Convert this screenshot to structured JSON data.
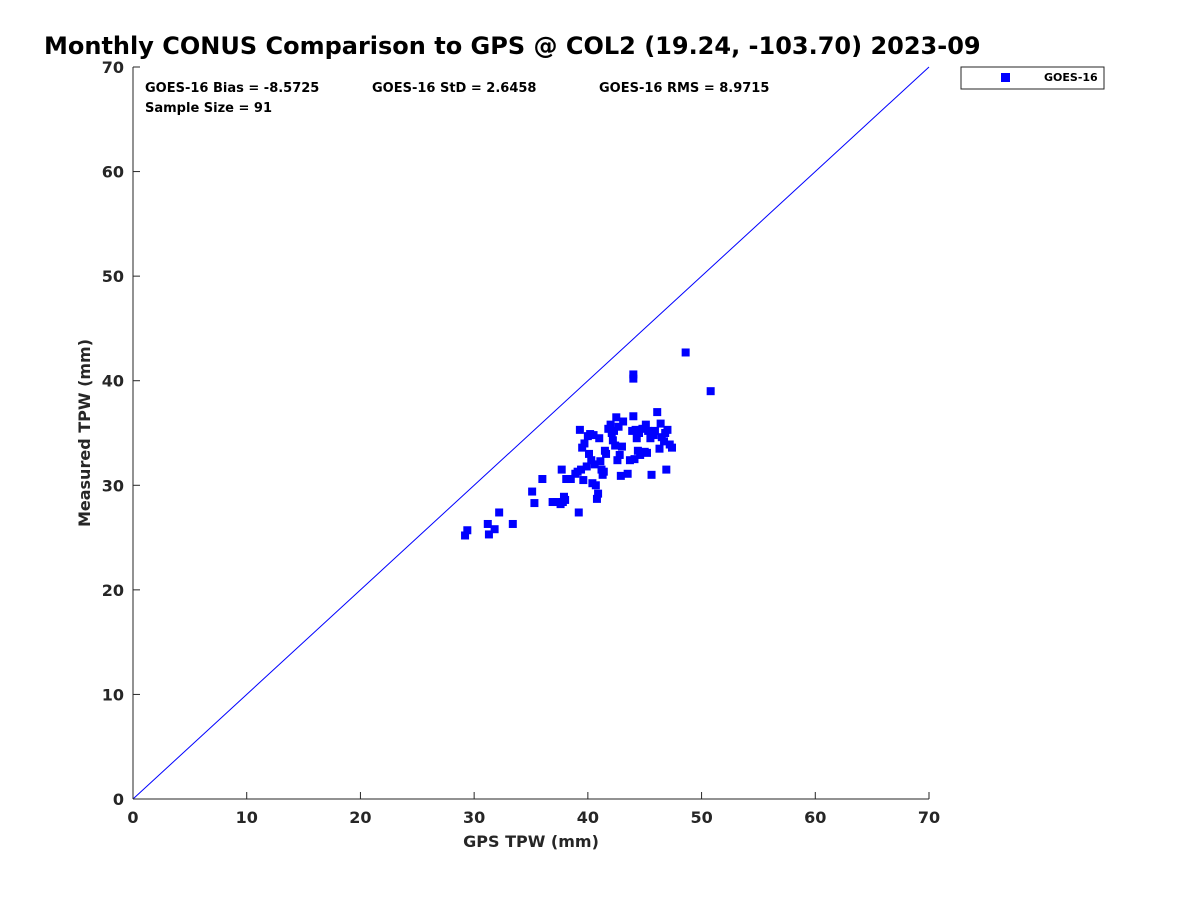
{
  "chart_data": {
    "type": "scatter",
    "title": "Monthly CONUS Comparison to GPS @ COL2 (19.24, -103.70) 2023-09",
    "xlabel": "GPS TPW (mm)",
    "ylabel": "Measured TPW (mm)",
    "xlim": [
      0,
      70
    ],
    "ylim": [
      0,
      70
    ],
    "xticks": [
      "0",
      "10",
      "20",
      "30",
      "40",
      "50",
      "60",
      "70"
    ],
    "yticks": [
      "0",
      "10",
      "20",
      "30",
      "40",
      "50",
      "60",
      "70"
    ],
    "grid": false,
    "legend_position": "outside-top-right",
    "reference_line": {
      "from": [
        0,
        0
      ],
      "to": [
        70,
        70
      ],
      "color": "#0000ff"
    },
    "stats": {
      "bias": "GOES-16 Bias = -8.5725",
      "std": "GOES-16 StD = 2.6458",
      "rms": "GOES-16 RMS = 8.9715",
      "sample": "Sample Size = 91"
    },
    "series": [
      {
        "name": "GOES-16",
        "color": "#0000ff",
        "marker": "square",
        "points": [
          [
            29.2,
            25.2
          ],
          [
            29.4,
            25.7
          ],
          [
            31.2,
            26.3
          ],
          [
            31.3,
            25.3
          ],
          [
            31.8,
            25.8
          ],
          [
            32.2,
            27.4
          ],
          [
            33.4,
            26.3
          ],
          [
            35.1,
            29.4
          ],
          [
            35.3,
            28.3
          ],
          [
            36.0,
            30.6
          ],
          [
            36.9,
            28.4
          ],
          [
            37.3,
            28.4
          ],
          [
            37.6,
            28.2
          ],
          [
            37.7,
            31.5
          ],
          [
            37.9,
            28.9
          ],
          [
            38.0,
            28.6
          ],
          [
            38.1,
            30.6
          ],
          [
            38.5,
            30.6
          ],
          [
            38.9,
            31.1
          ],
          [
            39.1,
            31.3
          ],
          [
            39.2,
            27.4
          ],
          [
            39.3,
            35.3
          ],
          [
            39.4,
            31.5
          ],
          [
            39.5,
            33.6
          ],
          [
            39.6,
            30.5
          ],
          [
            39.7,
            34.0
          ],
          [
            39.9,
            31.8
          ],
          [
            40.0,
            34.7
          ],
          [
            40.1,
            33.0
          ],
          [
            40.3,
            32.4
          ],
          [
            40.4,
            30.2
          ],
          [
            40.5,
            34.8
          ],
          [
            40.6,
            32.0
          ],
          [
            40.7,
            30.0
          ],
          [
            40.8,
            28.7
          ],
          [
            40.9,
            29.2
          ],
          [
            41.0,
            34.5
          ],
          [
            41.1,
            32.3
          ],
          [
            41.2,
            31.5
          ],
          [
            41.3,
            31.0
          ],
          [
            41.5,
            33.3
          ],
          [
            41.6,
            33.0
          ],
          [
            41.8,
            35.4
          ],
          [
            42.0,
            35.8
          ],
          [
            42.1,
            35.0
          ],
          [
            42.2,
            34.3
          ],
          [
            42.3,
            35.2
          ],
          [
            42.4,
            33.8
          ],
          [
            42.5,
            36.5
          ],
          [
            42.6,
            32.4
          ],
          [
            42.7,
            35.6
          ],
          [
            42.8,
            32.9
          ],
          [
            42.9,
            30.9
          ],
          [
            43.0,
            33.7
          ],
          [
            43.1,
            36.1
          ],
          [
            43.5,
            31.1
          ],
          [
            43.7,
            32.4
          ],
          [
            44.0,
            40.6
          ],
          [
            44.0,
            40.2
          ],
          [
            44.0,
            36.6
          ],
          [
            44.1,
            32.5
          ],
          [
            44.2,
            35.3
          ],
          [
            44.3,
            34.5
          ],
          [
            44.4,
            33.3
          ],
          [
            44.5,
            35.0
          ],
          [
            44.6,
            32.9
          ],
          [
            44.8,
            35.4
          ],
          [
            45.0,
            33.2
          ],
          [
            45.1,
            35.8
          ],
          [
            45.2,
            33.1
          ],
          [
            45.3,
            35.2
          ],
          [
            45.5,
            34.5
          ],
          [
            45.6,
            31.0
          ],
          [
            45.8,
            34.8
          ],
          [
            46.1,
            37.0
          ],
          [
            46.3,
            33.5
          ],
          [
            46.4,
            35.9
          ],
          [
            46.5,
            34.6
          ],
          [
            46.7,
            34.2
          ],
          [
            46.8,
            35.0
          ],
          [
            46.9,
            31.5
          ],
          [
            47.0,
            35.3
          ],
          [
            47.2,
            33.9
          ],
          [
            47.4,
            33.6
          ],
          [
            48.6,
            42.7
          ],
          [
            50.8,
            39.0
          ],
          [
            37.8,
            28.4
          ],
          [
            40.2,
            34.9
          ],
          [
            43.9,
            35.2
          ],
          [
            41.4,
            31.3
          ],
          [
            45.9,
            35.2
          ]
        ]
      }
    ]
  }
}
